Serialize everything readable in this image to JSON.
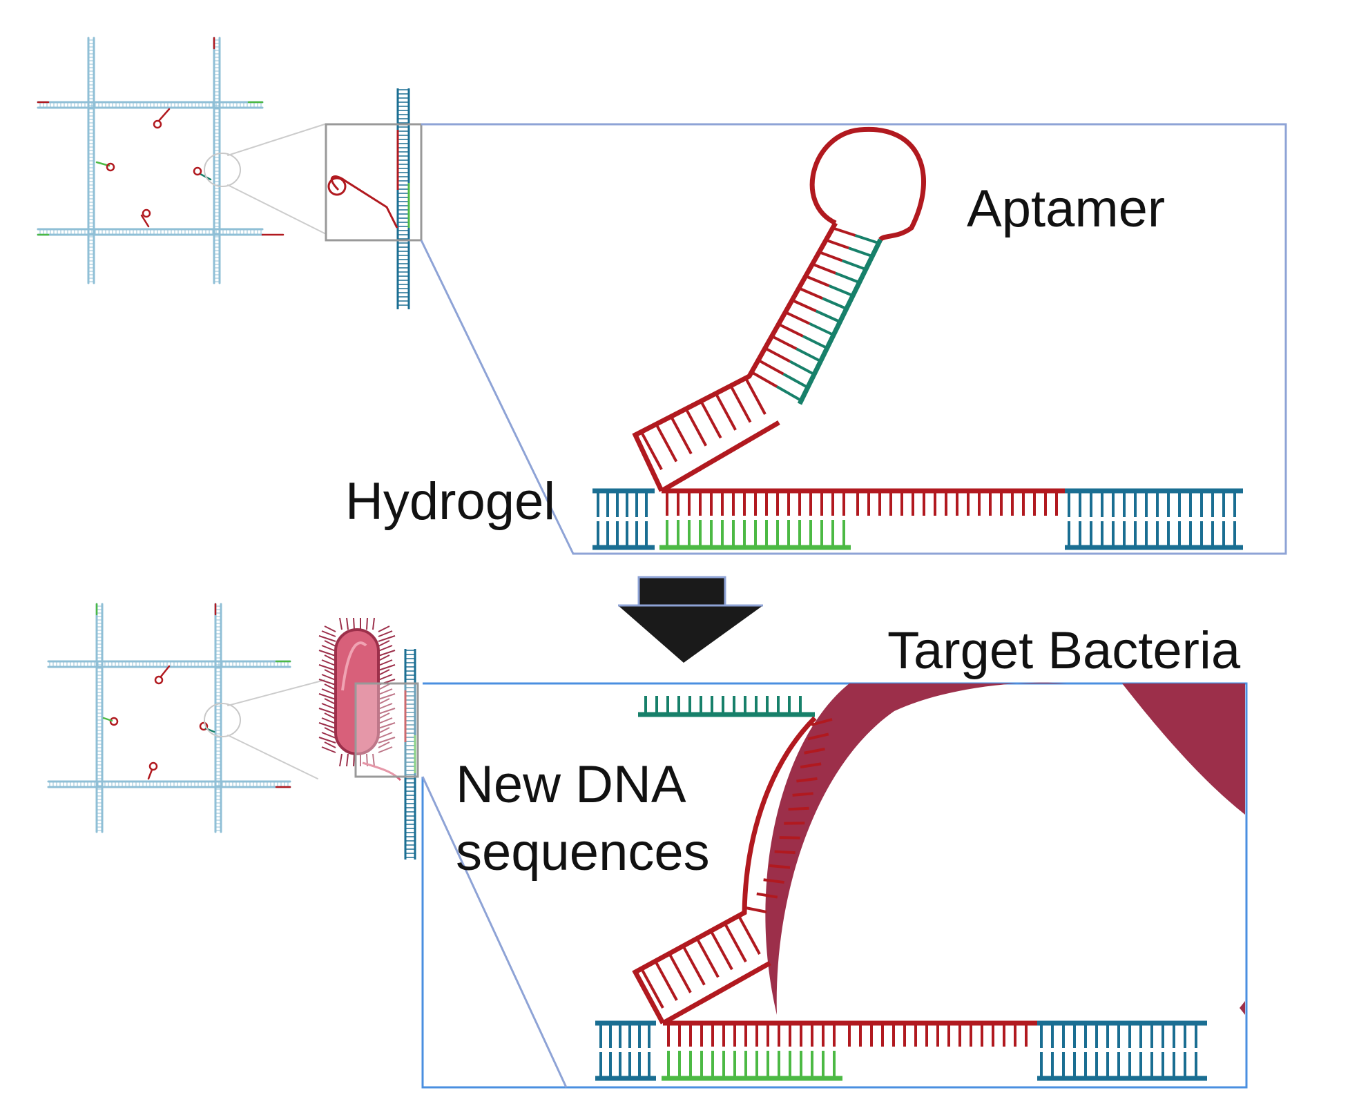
{
  "labels": {
    "aptamer": "Aptamer",
    "hydrogel": "Hydrogel",
    "target_bacteria": "Target Bacteria",
    "new_dna_line1": "New DNA",
    "new_dna_line2": "sequences"
  },
  "colors": {
    "blue_strand": "#1a6e92",
    "light_blue_strand": "#8fbfd6",
    "red_strand": "#b1191f",
    "green_strand": "#4cb944",
    "teal_strand": "#17806a",
    "frame_top": "#8ea3d6",
    "frame_bottom": "#4a8fe0",
    "bacterium": "#9c2f4a",
    "bacterium_body": "#d8607a",
    "arrow": "#1a1a1a"
  },
  "icons": {
    "process_arrow": "down-arrow-icon",
    "bacterium": "bacterium-icon"
  }
}
